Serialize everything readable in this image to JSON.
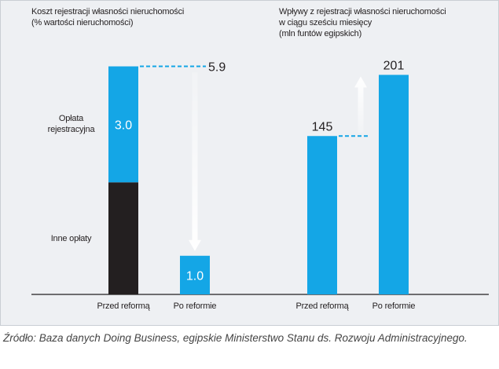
{
  "chart_data": [
    {
      "type": "bar",
      "stacked": true,
      "title": "Koszt rejestracji własności nieruchomości",
      "subtitle": "(% wartości nieruchomości)",
      "categories": [
        "Przed reformą",
        "Po reformie"
      ],
      "series": [
        {
          "name": "Inne opłaty",
          "color": "#231f20",
          "values": [
            2.9,
            null
          ]
        },
        {
          "name": "Opłata rejestracyjna",
          "color": "#14a6e6",
          "values": [
            3.0,
            1.0
          ],
          "value_labels": [
            "3.0",
            "1.0"
          ]
        }
      ],
      "totals": [
        5.9,
        null
      ],
      "ylim": [
        0,
        6.5
      ]
    },
    {
      "type": "bar",
      "title": "Wpływy z rejestracji własności nieruchomości w ciągu sześciu miesięcy",
      "subtitle": "(mln funtów egipskich)",
      "categories": [
        "Przed reformą",
        "Po reformie"
      ],
      "series": [
        {
          "color": "#14a6e6",
          "values": [
            145,
            201
          ]
        }
      ],
      "ylim": [
        0,
        230
      ]
    }
  ],
  "source": "Źródło: Baza danych Doing Business, egipskie Ministerstwo Stanu ds. Rozwoju Administracyjnego."
}
